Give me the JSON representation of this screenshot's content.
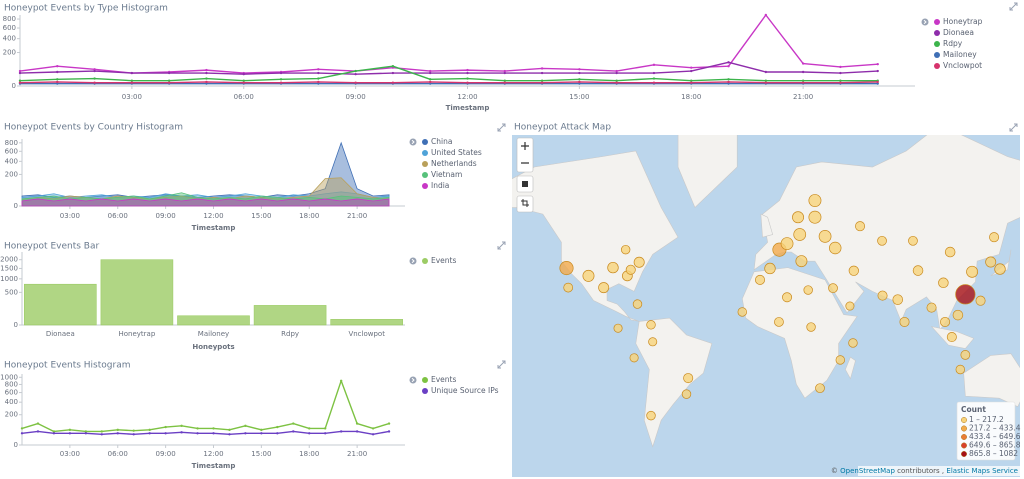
{
  "chart_data": [
    {
      "type": "line",
      "title": "Honeypot Events by Type Histogram",
      "scale": "sqrt",
      "x": [
        0,
        1,
        2,
        3,
        4,
        5,
        6,
        7,
        8,
        9,
        10,
        11,
        12,
        13,
        14,
        15,
        16,
        17,
        18,
        19,
        20,
        21,
        22,
        23
      ],
      "xlim": [
        0,
        24
      ],
      "xticks": [
        {
          "value": 3,
          "label": "03:00"
        },
        {
          "value": 6,
          "label": "06:00"
        },
        {
          "value": 9,
          "label": "09:00"
        },
        {
          "value": 12,
          "label": "12:00"
        },
        {
          "value": 15,
          "label": "15:00"
        },
        {
          "value": 18,
          "label": "18:00"
        },
        {
          "value": 21,
          "label": "21:00"
        }
      ],
      "x_label": "Timestamp",
      "ylim": [
        0,
        900
      ],
      "yticks": [
        0,
        200,
        400,
        600,
        800
      ],
      "series": [
        {
          "name": "Honeytrap",
          "color": "#c837c6",
          "values": [
            40,
            70,
            50,
            30,
            35,
            45,
            30,
            35,
            50,
            40,
            60,
            40,
            45,
            40,
            55,
            50,
            40,
            80,
            60,
            70,
            900,
            90,
            65,
            85
          ]
        },
        {
          "name": "Dionaea",
          "color": "#8e2dab",
          "values": [
            30,
            35,
            40,
            30,
            30,
            30,
            25,
            30,
            30,
            25,
            30,
            30,
            30,
            30,
            30,
            30,
            30,
            30,
            40,
            100,
            35,
            35,
            30,
            40
          ]
        },
        {
          "name": "Rdpy",
          "color": "#3cb44b",
          "values": [
            5,
            8,
            10,
            5,
            5,
            10,
            5,
            8,
            10,
            40,
            70,
            8,
            10,
            5,
            5,
            8,
            5,
            10,
            5,
            8,
            5,
            5,
            5,
            5
          ]
        },
        {
          "name": "Mailoney",
          "color": "#3f6fb5",
          "values": [
            1,
            1,
            1,
            1,
            1,
            1,
            1,
            1,
            1,
            1,
            1,
            1,
            1,
            1,
            1,
            1,
            1,
            1,
            1,
            1,
            1,
            1,
            1,
            1
          ]
        },
        {
          "name": "Vnclowpot",
          "color": "#d6336c",
          "values": [
            2,
            3,
            2,
            2,
            2,
            3,
            2,
            2,
            3,
            2,
            2,
            3,
            2,
            2,
            2,
            3,
            2,
            2,
            2,
            3,
            2,
            2,
            2,
            3
          ]
        }
      ]
    },
    {
      "type": "area",
      "title": "Honeypot Events by Country Histogram",
      "scale": "sqrt",
      "x": [
        0,
        1,
        2,
        3,
        4,
        5,
        6,
        7,
        8,
        9,
        10,
        11,
        12,
        13,
        14,
        15,
        16,
        17,
        18,
        19,
        20,
        21,
        22,
        23
      ],
      "xlim": [
        0,
        24
      ],
      "xticks": [
        {
          "value": 3,
          "label": "03:00"
        },
        {
          "value": 6,
          "label": "06:00"
        },
        {
          "value": 9,
          "label": "09:00"
        },
        {
          "value": 12,
          "label": "12:00"
        },
        {
          "value": 15,
          "label": "15:00"
        },
        {
          "value": 18,
          "label": "18:00"
        },
        {
          "value": 21,
          "label": "21:00"
        }
      ],
      "x_label": "Timestamp",
      "ylim": [
        0,
        900
      ],
      "yticks": [
        0,
        200,
        400,
        600,
        800
      ],
      "series": [
        {
          "name": "China",
          "color": "#3f6fb5",
          "values": [
            20,
            25,
            15,
            20,
            15,
            20,
            25,
            15,
            20,
            25,
            20,
            15,
            20,
            25,
            20,
            15,
            25,
            20,
            30,
            60,
            800,
            60,
            20,
            25
          ]
        },
        {
          "name": "United States",
          "color": "#4fa3d8",
          "values": [
            15,
            20,
            30,
            15,
            20,
            25,
            15,
            20,
            15,
            30,
            20,
            25,
            15,
            20,
            30,
            20,
            15,
            25,
            20,
            30,
            40,
            30,
            15,
            20
          ]
        },
        {
          "name": "Netherlands",
          "color": "#b9a05a",
          "values": [
            10,
            15,
            10,
            20,
            15,
            10,
            20,
            15,
            10,
            15,
            20,
            10,
            15,
            10,
            20,
            15,
            10,
            15,
            20,
            150,
            160,
            30,
            15,
            10
          ]
        },
        {
          "name": "Vietnam",
          "color": "#57c17b",
          "values": [
            10,
            15,
            20,
            10,
            15,
            10,
            15,
            20,
            10,
            20,
            35,
            15,
            10,
            15,
            10,
            20,
            15,
            10,
            15,
            10,
            20,
            15,
            10,
            15
          ]
        },
        {
          "name": "India",
          "color": "#c837c6",
          "values": [
            5,
            10,
            5,
            10,
            5,
            10,
            5,
            10,
            5,
            10,
            5,
            10,
            5,
            10,
            5,
            10,
            5,
            10,
            5,
            10,
            5,
            10,
            5,
            10
          ]
        }
      ]
    },
    {
      "type": "bar",
      "title": "Honeypot Events Bar",
      "scale": "sqrt",
      "categories": [
        "Dionaea",
        "Honeytrap",
        "Mailoney",
        "Rdpy",
        "Vnclowpot"
      ],
      "x_label": "Honeypots",
      "ylim": [
        0,
        2500
      ],
      "yticks": [
        0,
        500,
        1000,
        1500,
        2000
      ],
      "series": [
        {
          "name": "Events",
          "color": "#9ccc65",
          "values": [
            780,
            2000,
            40,
            180,
            15
          ]
        }
      ]
    },
    {
      "type": "line",
      "title": "Honeypot Events Histogram",
      "scale": "sqrt",
      "x": [
        0,
        1,
        2,
        3,
        4,
        5,
        6,
        7,
        8,
        9,
        10,
        11,
        12,
        13,
        14,
        15,
        16,
        17,
        18,
        19,
        20,
        21,
        22,
        23
      ],
      "xlim": [
        0,
        24
      ],
      "xticks": [
        {
          "value": 3,
          "label": "03:00"
        },
        {
          "value": 6,
          "label": "06:00"
        },
        {
          "value": 9,
          "label": "09:00"
        },
        {
          "value": 12,
          "label": "12:00"
        },
        {
          "value": 15,
          "label": "15:00"
        },
        {
          "value": 18,
          "label": "18:00"
        },
        {
          "value": 21,
          "label": "21:00"
        }
      ],
      "x_label": "Timestamp",
      "ylim": [
        0,
        1100
      ],
      "yticks": [
        0,
        200,
        400,
        600,
        800,
        1000
      ],
      "series": [
        {
          "name": "Events",
          "color": "#7dc242",
          "values": [
            60,
            100,
            40,
            50,
            40,
            40,
            50,
            45,
            50,
            70,
            80,
            60,
            60,
            50,
            80,
            50,
            70,
            100,
            60,
            60,
            900,
            100,
            60,
            100
          ]
        },
        {
          "name": "Unique Source IPs",
          "color": "#6a3fc4",
          "values": [
            30,
            40,
            30,
            30,
            30,
            25,
            30,
            25,
            30,
            30,
            35,
            30,
            30,
            25,
            30,
            30,
            30,
            40,
            30,
            30,
            40,
            40,
            25,
            40
          ]
        }
      ]
    },
    {
      "type": "map",
      "title": "Honeypot Attack Map",
      "legend_title": "Count",
      "legend": [
        {
          "from": 1,
          "to": 217.2,
          "label": "1 – 217.2",
          "color": "#f8d37a"
        },
        {
          "from": 217.2,
          "to": 433.4,
          "label": "217.2 – 433.4",
          "color": "#f2aa4c"
        },
        {
          "from": 433.4,
          "to": 649.6,
          "label": "433.4 – 649.6",
          "color": "#ea7c35"
        },
        {
          "from": 649.6,
          "to": 865.8,
          "label": "649.6 – 865.8",
          "color": "#d8402a"
        },
        {
          "from": 865.8,
          "to": 1082,
          "label": "865.8 – 1082",
          "color": "#a50f15"
        }
      ],
      "points": [
        {
          "lon": -121,
          "lat": 36.8,
          "value": 300
        },
        {
          "lon": -108,
          "lat": 33,
          "value": 150
        },
        {
          "lon": -93.5,
          "lat": 37,
          "value": 120
        },
        {
          "lon": -99,
          "lat": 27,
          "value": 100
        },
        {
          "lon": -85,
          "lat": 33,
          "value": 90
        },
        {
          "lon": -78,
          "lat": 39.5,
          "value": 100
        },
        {
          "lon": -83,
          "lat": 36,
          "value": 60
        },
        {
          "lon": -86,
          "lat": 45,
          "value": 40
        },
        {
          "lon": -120,
          "lat": 27,
          "value": 50
        },
        {
          "lon": -79,
          "lat": 18,
          "value": 40
        },
        {
          "lon": -90.5,
          "lat": 4,
          "value": 30
        },
        {
          "lon": -71,
          "lat": 6,
          "value": 40
        },
        {
          "lon": -70,
          "lat": -4,
          "value": 30
        },
        {
          "lon": -81,
          "lat": -13.4,
          "value": 30
        },
        {
          "lon": -71,
          "lat": -43,
          "value": 40
        },
        {
          "lon": -50,
          "lat": -33,
          "value": 40
        },
        {
          "lon": -49,
          "lat": -24.7,
          "value": 60
        },
        {
          "lon": 5,
          "lat": 45,
          "value": 300
        },
        {
          "lon": 9.5,
          "lat": 47.5,
          "value": 200
        },
        {
          "lon": 17,
          "lat": 51,
          "value": 200
        },
        {
          "lon": 26,
          "lat": 57,
          "value": 210
        },
        {
          "lon": 32,
          "lat": 50.3,
          "value": 200
        },
        {
          "lon": 38,
          "lat": 45.7,
          "value": 180
        },
        {
          "lon": 18,
          "lat": 40,
          "value": 150
        },
        {
          "lon": 26,
          "lat": 62,
          "value": 210
        },
        {
          "lon": 16,
          "lat": 57,
          "value": 150
        },
        {
          "lon": -0.6,
          "lat": 36.6,
          "value": 120
        },
        {
          "lon": -6.5,
          "lat": 31,
          "value": 60
        },
        {
          "lon": 9.5,
          "lat": 21.8,
          "value": 60
        },
        {
          "lon": 22,
          "lat": 25.7,
          "value": 40
        },
        {
          "lon": 36.7,
          "lat": 26.7,
          "value": 50
        },
        {
          "lon": 46.7,
          "lat": 16.9,
          "value": 30
        },
        {
          "lon": 49,
          "lat": 35.5,
          "value": 70
        },
        {
          "lon": 66,
          "lat": 22.7,
          "value": 60
        },
        {
          "lon": 75,
          "lat": 20.5,
          "value": 80
        },
        {
          "lon": 79,
          "lat": 7.7,
          "value": 60
        },
        {
          "lon": 87,
          "lat": 35.6,
          "value": 80
        },
        {
          "lon": 106,
          "lat": 44,
          "value": 80
        },
        {
          "lon": 115,
          "lat": 23.4,
          "value": 1000
        },
        {
          "lon": 119,
          "lat": 35,
          "value": 150
        },
        {
          "lon": 130,
          "lat": 39.6,
          "value": 100
        },
        {
          "lon": 135.5,
          "lat": 36.3,
          "value": 120
        },
        {
          "lon": 110.6,
          "lat": 11.7,
          "value": 80
        },
        {
          "lon": 107,
          "lat": -1.2,
          "value": 60
        },
        {
          "lon": 103,
          "lat": 7.7,
          "value": 60
        },
        {
          "lon": 115,
          "lat": -11.7,
          "value": 50
        },
        {
          "lon": 112,
          "lat": -20,
          "value": 40
        },
        {
          "lon": 48.5,
          "lat": -4.7,
          "value": 40
        },
        {
          "lon": 23.7,
          "lat": 4.7,
          "value": 40
        },
        {
          "lon": 4.7,
          "lat": 7.7,
          "value": 50
        },
        {
          "lon": -17,
          "lat": 13.5,
          "value": 40
        },
        {
          "lon": 41,
          "lat": -14.6,
          "value": 40
        },
        {
          "lon": 29,
          "lat": -30,
          "value": 50
        },
        {
          "lon": 132,
          "lat": 50,
          "value": 60
        },
        {
          "lon": 84,
          "lat": 48.6,
          "value": 50
        },
        {
          "lon": 52.7,
          "lat": 54,
          "value": 60
        },
        {
          "lon": 65.7,
          "lat": 48.6,
          "value": 50
        },
        {
          "lon": 102,
          "lat": 29.5,
          "value": 80
        },
        {
          "lon": 95,
          "lat": 16,
          "value": 60
        },
        {
          "lon": 124,
          "lat": 19.9,
          "value": 60
        }
      ],
      "attribution": {
        "prefix": "©",
        "osm": "OpenStreetMap",
        "contributors": "contributors ,",
        "ems": "Elastic Maps Service"
      }
    }
  ]
}
